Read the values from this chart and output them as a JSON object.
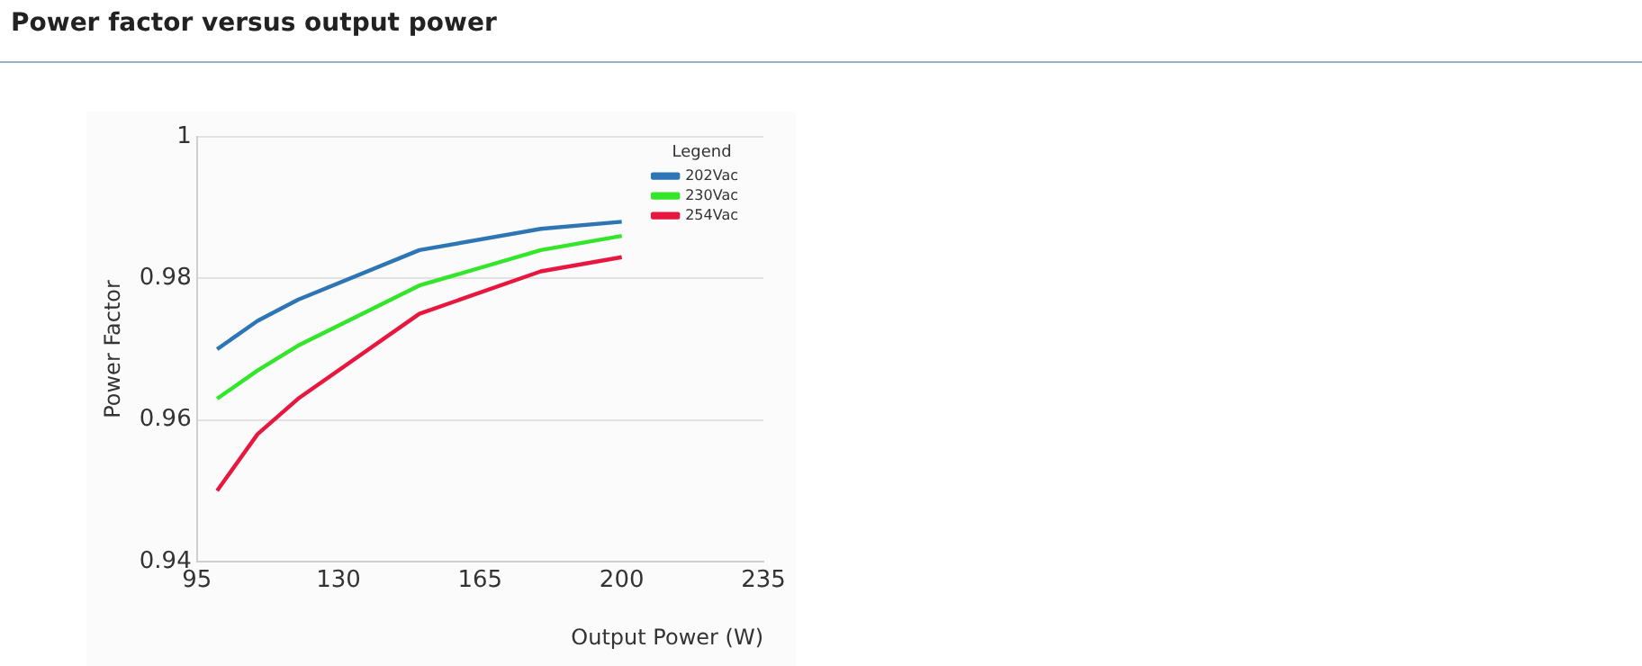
{
  "chart_data": {
    "type": "line",
    "title": "Power factor versus output power",
    "xlabel": "Output Power (W)",
    "ylabel": "Power Factor",
    "legend_title": "Legend",
    "x": [
      100,
      110,
      120,
      150,
      180,
      200
    ],
    "series": [
      {
        "name": "202Vac",
        "color": "#2e75b6",
        "values": [
          0.97,
          0.974,
          0.977,
          0.984,
          0.987,
          0.988
        ]
      },
      {
        "name": "230Vac",
        "color": "#33e62a",
        "values": [
          0.963,
          0.967,
          0.9705,
          0.979,
          0.984,
          0.986
        ]
      },
      {
        "name": "254Vac",
        "color": "#e8173f",
        "values": [
          0.95,
          0.958,
          0.963,
          0.975,
          0.981,
          0.983
        ]
      }
    ],
    "xlim": [
      95,
      235
    ],
    "xticks": [
      95,
      130,
      165,
      200,
      235
    ],
    "ylim": [
      0.94,
      1
    ],
    "yticks": [
      0.94,
      0.96,
      0.98,
      1
    ],
    "grid": "y",
    "legend": "top right",
    "marker": "none",
    "line_style": "solid"
  }
}
